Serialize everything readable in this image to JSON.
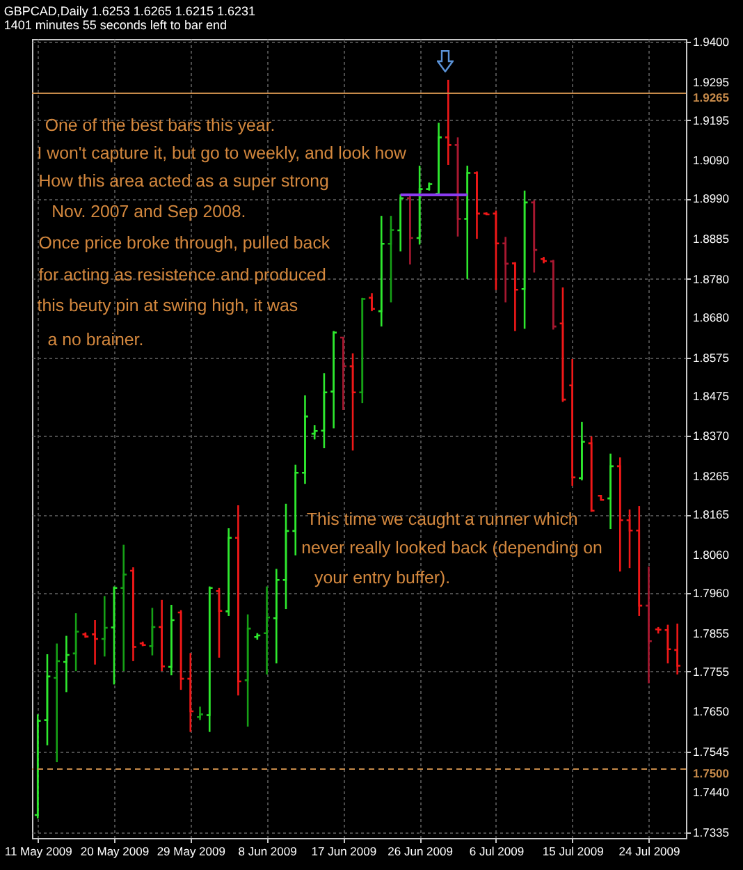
{
  "chart_data": {
    "type": "candlestick",
    "title": "GBPCAD,Daily 1.6253 1.6265 1.6215 1.6231",
    "subtitle": "1401 minutes 55 seconds left to bar end",
    "categories": [
      "11 May 2009",
      null,
      null,
      null,
      null,
      null,
      null,
      null,
      "20 May 2009",
      null,
      null,
      null,
      null,
      null,
      null,
      null,
      "29 May 2009",
      null,
      null,
      null,
      null,
      null,
      null,
      null,
      "8 Jun 2009",
      null,
      null,
      null,
      null,
      null,
      null,
      null,
      "17 Jun 2009",
      null,
      null,
      null,
      null,
      null,
      null,
      null,
      "26 Jun 2009",
      null,
      null,
      null,
      null,
      null,
      null,
      null,
      "6 Jul 2009",
      null,
      null,
      null,
      null,
      null,
      null,
      null,
      "15 Jul 2009",
      null,
      null,
      null,
      null,
      null,
      null,
      null,
      "24 Jul 2009",
      null,
      null,
      null
    ],
    "ohlc": [
      [
        1.738,
        1.7643,
        1.7371,
        1.7626
      ],
      [
        1.7628,
        1.78,
        1.7562,
        1.7742
      ],
      [
        1.7738,
        1.7828,
        1.7518,
        1.7782
      ],
      [
        1.778,
        1.7848,
        1.7701,
        1.7798
      ],
      [
        1.7802,
        1.7907,
        1.7756,
        1.7859
      ],
      [
        1.7852,
        1.7857,
        1.7843,
        1.7846
      ],
      [
        1.7852,
        1.7889,
        1.7773,
        1.784
      ],
      [
        1.784,
        1.7952,
        1.7794,
        1.7869
      ],
      [
        1.787,
        1.7977,
        1.7721,
        1.7973
      ],
      [
        1.7973,
        1.8086,
        1.7756,
        1.8008
      ],
      [
        1.8018,
        1.8027,
        1.7782,
        1.7819
      ],
      [
        1.7828,
        1.7833,
        1.7821,
        1.7824
      ],
      [
        1.7821,
        1.7921,
        1.7797,
        1.7871
      ],
      [
        1.7871,
        1.7942,
        1.7756,
        1.7768
      ],
      [
        1.7767,
        1.7929,
        1.7745,
        1.7889
      ],
      [
        1.7909,
        1.7915,
        1.7707,
        1.7736
      ],
      [
        1.7736,
        1.7803,
        1.7597,
        1.7651
      ],
      [
        1.7636,
        1.7663,
        1.7628,
        1.7643
      ],
      [
        1.7641,
        1.7977,
        1.7597,
        1.7973
      ],
      [
        1.7965,
        1.7973,
        1.7791,
        1.7913
      ],
      [
        1.7912,
        1.8129,
        1.79,
        1.8104
      ],
      [
        1.8104,
        1.8189,
        1.7692,
        1.7729
      ],
      [
        1.7732,
        1.7904,
        1.7611,
        1.7867
      ],
      [
        1.7845,
        1.7855,
        1.7838,
        1.7849
      ],
      [
        1.7855,
        1.7977,
        1.7747,
        1.7896
      ],
      [
        1.7894,
        1.8023,
        1.7776,
        1.7994
      ],
      [
        1.7994,
        1.8193,
        1.7918,
        1.8122
      ],
      [
        1.8122,
        1.8295,
        1.8058,
        1.8274
      ],
      [
        1.8274,
        1.8476,
        1.8245,
        1.8421
      ],
      [
        1.8376,
        1.8398,
        1.8361,
        1.8383
      ],
      [
        1.8384,
        1.8534,
        1.8338,
        1.8484
      ],
      [
        1.8486,
        1.8644,
        1.839,
        1.864
      ],
      [
        1.8627,
        1.8627,
        1.8438,
        1.8552
      ],
      [
        1.8552,
        1.8586,
        1.8332,
        1.8484
      ],
      [
        1.8484,
        1.8731,
        1.8456,
        1.8728
      ],
      [
        1.8731,
        1.8743,
        1.8696,
        1.8702
      ],
      [
        1.8696,
        1.8945,
        1.8656,
        1.8872
      ],
      [
        1.8872,
        1.8945,
        1.8719,
        1.8908
      ],
      [
        1.8907,
        1.9001,
        1.8852,
        1.8991
      ],
      [
        1.8991,
        1.9001,
        1.8818,
        1.8887
      ],
      [
        1.8887,
        1.9076,
        1.887,
        1.9015
      ],
      [
        1.9015,
        1.9032,
        1.9011,
        1.9028
      ],
      [
        1.9003,
        1.9188,
        1.9003,
        1.915
      ],
      [
        1.915,
        1.93,
        1.9078,
        1.913
      ],
      [
        1.913,
        1.915,
        1.8891,
        1.8937
      ],
      [
        1.8937,
        1.9076,
        1.878,
        1.9057
      ],
      [
        1.9057,
        1.9061,
        1.8885,
        1.8951
      ],
      [
        1.8951,
        1.8954,
        1.8947,
        1.8949
      ],
      [
        1.8951,
        1.8959,
        1.8751,
        1.8873
      ],
      [
        1.8873,
        1.889,
        1.8719,
        1.882
      ],
      [
        1.8821,
        1.8824,
        1.8644,
        1.8752
      ],
      [
        1.8754,
        1.9011,
        1.865,
        1.898
      ],
      [
        1.898,
        1.8986,
        1.8797,
        1.8856
      ],
      [
        1.8832,
        1.8838,
        1.8821,
        1.8827
      ],
      [
        1.8826,
        1.883,
        1.8648,
        1.8656
      ],
      [
        1.8664,
        1.8758,
        1.8459,
        1.8465
      ],
      [
        1.8502,
        1.8571,
        1.824,
        1.8262
      ],
      [
        1.826,
        1.8407,
        1.8254,
        1.8355
      ],
      [
        1.8351,
        1.8369,
        1.8172,
        1.8175
      ],
      [
        1.8214,
        1.8216,
        1.8202,
        1.8203
      ],
      [
        1.8207,
        1.8324,
        1.8127,
        1.8291
      ],
      [
        1.8291,
        1.8314,
        1.8016,
        1.815
      ],
      [
        1.815,
        1.8178,
        1.8025,
        1.8123
      ],
      [
        1.8123,
        1.8187,
        1.79,
        1.7927
      ],
      [
        1.7927,
        1.8029,
        1.7724,
        1.7834
      ],
      [
        1.7865,
        1.7871,
        1.7854,
        1.7864
      ],
      [
        1.7863,
        1.7877,
        1.7776,
        1.7813
      ],
      [
        1.7811,
        1.788,
        1.7747,
        1.777
      ]
    ],
    "colors": [
      "#2ee82e",
      "#2ee82e",
      "#16a016",
      "#2ee82e",
      "#16a016",
      "#f01818",
      "#f01818",
      "#16a016",
      "#2ee82e",
      "#16a016",
      "#f01818",
      "#f01818",
      "#16a016",
      "#f01818",
      "#2ee82e",
      "#f01818",
      "#f01818",
      "#16a016",
      "#2ee82e",
      "#f01818",
      "#2ee82e",
      "#f01818",
      "#16a016",
      "#2ee82e",
      "#16a016",
      "#2ee82e",
      "#2ee82e",
      "#2ee82e",
      "#2ee82e",
      "#2ee82e",
      "#2ee82e",
      "#2ee82e",
      "#a81830",
      "#f01818",
      "#16a016",
      "#f01818",
      "#2ee82e",
      "#16a016",
      "#2ee82e",
      "#a81830",
      "#2ee82e",
      "#2ee82e",
      "#2ee82e",
      "#f01818",
      "#a81830",
      "#2ee82e",
      "#f01818",
      "#f01818",
      "#f01818",
      "#a81830",
      "#f01818",
      "#2ee82e",
      "#a81830",
      "#f01818",
      "#a81830",
      "#f01818",
      "#f01818",
      "#2ee82e",
      "#f01818",
      "#f01818",
      "#2ee82e",
      "#f01818",
      "#f01818",
      "#f01818",
      "#a81830",
      "#f01818",
      "#f01818",
      "#f01818"
    ],
    "series": [
      {
        "type": "line",
        "color": "#8a3cf0",
        "values": [
          null,
          null,
          null,
          null,
          null,
          null,
          null,
          null,
          null,
          null,
          null,
          null,
          null,
          null,
          null,
          null,
          null,
          null,
          null,
          null,
          null,
          null,
          null,
          null,
          null,
          null,
          null,
          null,
          null,
          null,
          null,
          null,
          null,
          null,
          null,
          null,
          null,
          null,
          1.9,
          1.9,
          1.9,
          1.9,
          1.9,
          1.9,
          1.9,
          1.9,
          null,
          null,
          null,
          null,
          null,
          null,
          null,
          null,
          null,
          null,
          null,
          null,
          null,
          null,
          null,
          null,
          null,
          null,
          null,
          null,
          null,
          null
        ]
      }
    ],
    "ylim": [
      1.732,
      1.9407
    ],
    "yticks": [
      {
        "value": 1.94,
        "label": "1.9400"
      },
      1.9295,
      1.9195,
      {
        "value": 1.909,
        "label": "1.9090"
      },
      {
        "value": 1.899,
        "label": "1.8990"
      },
      1.8885,
      {
        "value": 1.878,
        "label": "1.8780"
      },
      {
        "value": 1.868,
        "label": "1.8680"
      },
      1.8575,
      1.8475,
      {
        "value": 1.837,
        "label": "1.8370"
      },
      1.8265,
      1.8165,
      {
        "value": 1.806,
        "label": "1.8060"
      },
      {
        "value": 1.796,
        "label": "1.7960"
      },
      1.7855,
      1.7755,
      {
        "value": 1.765,
        "label": "1.7650"
      },
      1.7545,
      {
        "value": 1.744,
        "label": "1.7440"
      },
      1.7335
    ],
    "grid": true,
    "ref_lines": [
      {
        "axis": "y",
        "value": 1.9265,
        "label": "1.9265",
        "color": "#c68a4a"
      },
      {
        "axis": "y",
        "value": 1.75,
        "label": "1.7500",
        "color": "#c68a4a",
        "line_style": "dashed"
      }
    ],
    "annotations": [
      "One of the best bars this year.",
      "I won't capture it, but go to weekly, and look how",
      "How this area acted as a super strong",
      "Nov. 2007 and Sep 2008.",
      "Once price broke through, pulled back",
      "for acting as resistence and produced",
      "this beuty pin at swing high, it was",
      "a no brainer.",
      "This time we caught a runner which",
      "never really looked back (depending on",
      "your entry buffer)."
    ]
  }
}
